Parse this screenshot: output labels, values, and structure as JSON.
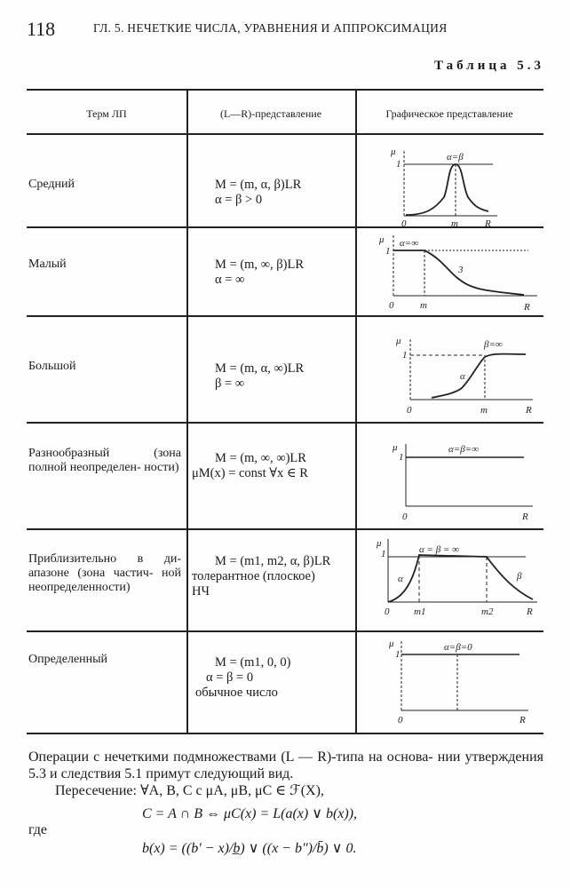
{
  "header": {
    "page_number": "118",
    "running_title": "ГЛ. 5. НЕЧЕТКИЕ ЧИСЛА, УРАВНЕНИЯ И АППРОКСИМАЦИЯ",
    "table_caption": "Таблица 5.3"
  },
  "table": {
    "columns": [
      "Терм ЛП",
      "(L—R)-представление",
      "Графическое представление"
    ],
    "rows": [
      {
        "term": "Средний",
        "formula": [
          "M = (m, α, β)LR",
          "α = β > 0"
        ],
        "graph_labels": {
          "mu": "μ",
          "one": "1",
          "zero": "0",
          "x": "R",
          "m": "m",
          "param": "α=β"
        }
      },
      {
        "term": "Малый",
        "formula": [
          "M = (m, ∞, β)LR",
          "α = ∞"
        ],
        "graph_labels": {
          "mu": "μ",
          "one": "1",
          "zero": "0",
          "x": "R",
          "m": "m",
          "param": "α=∞",
          "curve": "3"
        }
      },
      {
        "term": "Большой",
        "formula": [
          "M = (m, α, ∞)LR",
          "β = ∞"
        ],
        "graph_labels": {
          "mu": "μ",
          "one": "1",
          "zero": "0",
          "x": "R",
          "m": "m",
          "param": "β=∞",
          "curve": "α"
        }
      },
      {
        "term": "Разнообразный (зона полной неопределен- ности)",
        "formula": [
          "M = (m, ∞, ∞)LR",
          "μM(x) = const ∀x ∈ R"
        ],
        "graph_labels": {
          "mu": "μ",
          "one": "1",
          "zero": "0",
          "x": "R",
          "param": "α=β=∞"
        }
      },
      {
        "term": "Приблизительно в ди- апазоне (зона частич- ной неопределенности)",
        "formula": [
          "M = (m1, m2, α, β)LR",
          "толерантное (плоское)",
          "НЧ"
        ],
        "graph_labels": {
          "mu": "μ",
          "one": "1",
          "zero": "0",
          "x": "R",
          "m1": "m1",
          "m2": "m2",
          "param": "α = β = ∞",
          "left": "α",
          "right": "β"
        }
      },
      {
        "term": "Определенный",
        "formula": [
          "M = (m1, 0, 0)",
          "α = β = 0",
          "обычное число"
        ],
        "graph_labels": {
          "mu": "μ",
          "one": "1",
          "zero": "0",
          "x": "R",
          "param": "α=β=0"
        }
      }
    ]
  },
  "body": {
    "paragraph": "Операции с нечеткими подмножествами (L — R)-типа на основа- нии утверждения 5.3 и следствия 5.1 примут следующий вид.",
    "intersection": "Пересечение: ∀A, B, C  с μA, μB, μC ∈ ℱ(X),",
    "eq1": "C = A ∩ B ⇔ μC(x) = L(a(x) ∨ b(x)),",
    "where": "где",
    "eq2": "b(x) = ((b′ − x)/b̲) ∨ ((x − b″)/b̄) ∨ 0."
  }
}
